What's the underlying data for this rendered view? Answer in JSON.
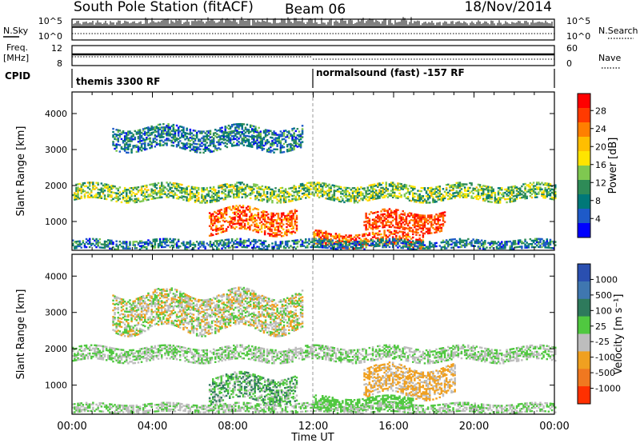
{
  "header": {
    "station": "South Pole Station (fitACF)",
    "beam": "Beam 06",
    "date": "18/Nov/2014"
  },
  "nsky_panel": {
    "left_label": "N.Sky",
    "right_label": "N.Search",
    "left_ticks": [
      "10^5",
      "10^0"
    ],
    "right_ticks": [
      "10^5",
      "10^0"
    ]
  },
  "freq_panel": {
    "left_label_line1": "Freq.",
    "left_label_line2": "[MHz]",
    "right_label": "Nave",
    "left_ticks": [
      "12",
      "8"
    ],
    "right_ticks": [
      "60",
      "0"
    ]
  },
  "cpid_panel": {
    "label": "CPID",
    "segments": [
      {
        "start_hour": 0,
        "end_hour": 12,
        "text": "themis 3300 RF"
      },
      {
        "start_hour": 12,
        "end_hour": 24,
        "text": "normalsound (fast) -157 RF"
      }
    ]
  },
  "x_axis": {
    "label": "Time UT",
    "ticks": [
      "00:00",
      "04:00",
      "08:00",
      "12:00",
      "16:00",
      "20:00",
      "00:00"
    ]
  },
  "power_colorbar": {
    "label": "Power [dB]",
    "labels": [
      "28",
      "24",
      "20",
      "16",
      "12",
      "8",
      "4"
    ],
    "colors": [
      "#ff0000",
      "#ff3a00",
      "#ff7f00",
      "#ffbe00",
      "#ffe400",
      "#7fc850",
      "#2e8b57",
      "#007878",
      "#1e5ac8",
      "#0000ff"
    ]
  },
  "velocity_colorbar": {
    "label": "Velocity [m s⁻¹]",
    "labels": [
      "1000",
      "500",
      "100",
      "25",
      "-25",
      "-100",
      "-500",
      "-1000"
    ],
    "colors": [
      "#2a4fb0",
      "#3f77b0",
      "#2e7a5c",
      "#50c840",
      "#bdbdbd",
      "#f0a020",
      "#f07820",
      "#ff3000"
    ]
  },
  "chart_data": [
    {
      "type": "heatmap",
      "panel": "power",
      "ylabel": "Slant Range [km]",
      "xlabel": "",
      "xlim": [
        0,
        24
      ],
      "ylim": [
        200,
        4600
      ],
      "yticks": [
        "4000",
        "3000",
        "2000",
        "1000"
      ],
      "ytick_values": [
        4000,
        3000,
        2000,
        1000
      ],
      "colorbar_range": [
        0,
        32
      ],
      "scatter_bands": [
        {
          "t0": 0,
          "t1": 24,
          "r_center": 1800,
          "r_halfwidth": 220,
          "value": 14,
          "spread": 6
        },
        {
          "t0": 6.8,
          "t1": 11.2,
          "r_center": 1000,
          "r_halfwidth": 320,
          "value": 26,
          "spread": 6
        },
        {
          "t0": 12,
          "t1": 17.5,
          "r_center": 500,
          "r_halfwidth": 200,
          "value": 26,
          "spread": 6
        },
        {
          "t0": 14.5,
          "t1": 18.5,
          "r_center": 1000,
          "r_halfwidth": 260,
          "value": 27,
          "spread": 4
        },
        {
          "t0": 2,
          "t1": 11.5,
          "r_center": 3300,
          "r_halfwidth": 300,
          "value": 8,
          "spread": 6
        },
        {
          "t0": 0,
          "t1": 24,
          "r_center": 350,
          "r_halfwidth": 120,
          "value": 8,
          "spread": 6
        }
      ]
    },
    {
      "type": "heatmap",
      "panel": "velocity",
      "ylabel": "Slant Range [km]",
      "xlabel": "Time UT",
      "xlim": [
        0,
        24
      ],
      "ylim": [
        200,
        4600
      ],
      "yticks": [
        "4000",
        "3000",
        "2000",
        "1000"
      ],
      "ytick_values": [
        4000,
        3000,
        2000,
        1000
      ],
      "colorbar_range": [
        -1000,
        1000
      ],
      "scatter_bands": [
        {
          "t0": 0,
          "t1": 24,
          "r_center": 1850,
          "r_halfwidth": 200,
          "value": 0,
          "spread": 20
        },
        {
          "t0": 6.8,
          "t1": 11.2,
          "r_center": 900,
          "r_halfwidth": 350,
          "value": 150,
          "spread": 300
        },
        {
          "t0": 12,
          "t1": 17,
          "r_center": 500,
          "r_halfwidth": 180,
          "value": 80,
          "spread": 60
        },
        {
          "t0": 14.5,
          "t1": 19,
          "r_center": 1100,
          "r_halfwidth": 400,
          "value": -300,
          "spread": 200
        },
        {
          "t0": 2,
          "t1": 11.5,
          "r_center": 3000,
          "r_halfwidth": 500,
          "value": -120,
          "spread": 300
        },
        {
          "t0": 0,
          "t1": 24,
          "r_center": 350,
          "r_halfwidth": 120,
          "value": 0,
          "spread": 40
        }
      ]
    }
  ]
}
